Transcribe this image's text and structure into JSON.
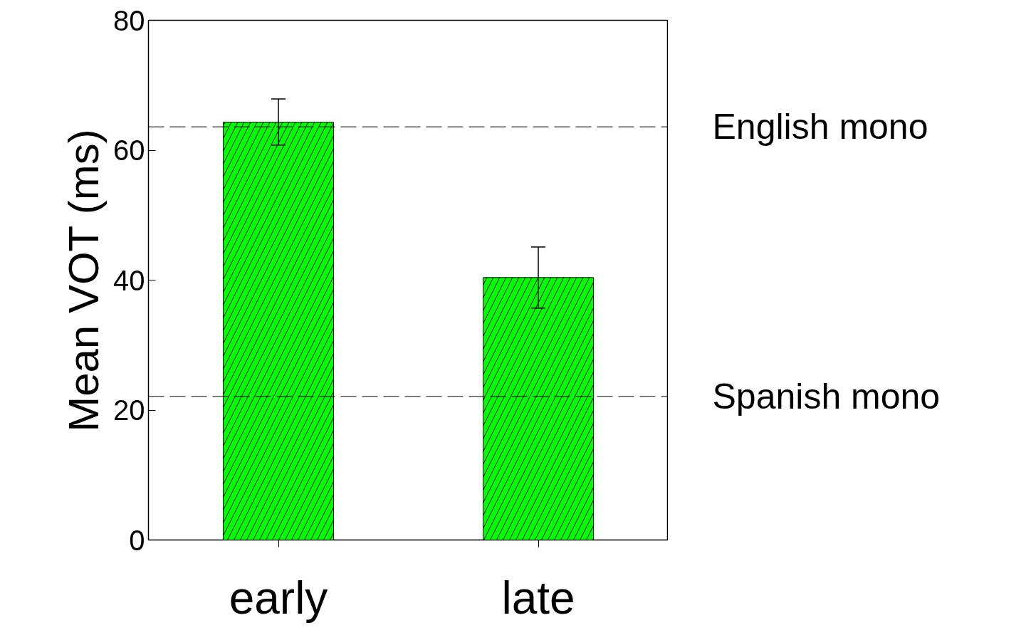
{
  "chart_data": {
    "type": "bar",
    "ylabel": "Mean VOT (ms)",
    "categories": [
      "early",
      "late"
    ],
    "values": [
      64.3,
      40.4
    ],
    "errors": [
      [
        60.8,
        67.9
      ],
      [
        35.7,
        45.1
      ]
    ],
    "color": "#00ff00",
    "ylim": [
      0,
      80
    ],
    "yticks": [
      0,
      20,
      40,
      60,
      80
    ],
    "grid": false,
    "ref_lines": [
      {
        "axis": "y",
        "value": 63.6,
        "label": "English mono",
        "line_style": "dashed"
      },
      {
        "axis": "y",
        "value": 22.1,
        "label": "Spanish mono",
        "line_style": "dashed"
      }
    ]
  }
}
